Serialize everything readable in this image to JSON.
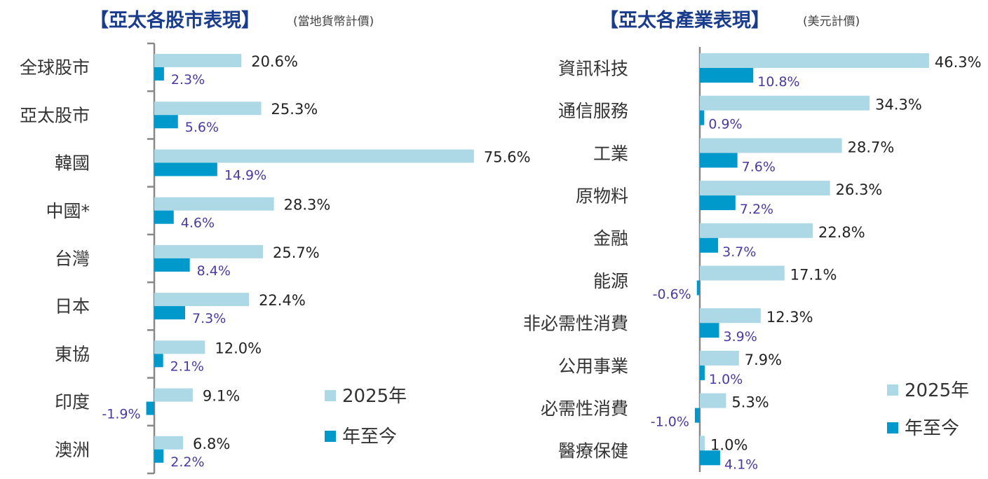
{
  "colors": {
    "series_2025": "#add8e6",
    "series_ytd": "#0099cc",
    "title": "#1a3c8c",
    "ytd_label": "#4a3aa0",
    "axis": "#888888"
  },
  "chart_data": [
    {
      "type": "bar",
      "orientation": "horizontal",
      "title": "【亞太各股市表現】",
      "subtitle": "(當地貨幣計價)",
      "categories": [
        "全球股市",
        "亞太股市",
        "韓國",
        "中國*",
        "台灣",
        "日本",
        "東協",
        "印度",
        "澳洲"
      ],
      "series": [
        {
          "name": "2025年",
          "values": [
            20.6,
            25.3,
            75.6,
            28.3,
            25.7,
            22.4,
            12.0,
            9.1,
            6.8
          ],
          "labels": [
            "20.6%",
            "25.3%",
            "75.6%",
            "28.3%",
            "25.7%",
            "22.4%",
            "12.0%",
            "9.1%",
            "6.8%"
          ]
        },
        {
          "name": "年至今",
          "values": [
            2.3,
            5.6,
            14.9,
            4.6,
            8.4,
            7.3,
            2.1,
            -1.9,
            2.2
          ],
          "labels": [
            "2.3%",
            "5.6%",
            "14.9%",
            "4.6%",
            "8.4%",
            "7.3%",
            "2.1%",
            "-1.9%",
            "2.2%"
          ]
        }
      ],
      "unit": "%",
      "legend": [
        "2025年",
        "年至今"
      ],
      "legend_position": "bottom-right"
    },
    {
      "type": "bar",
      "orientation": "horizontal",
      "title": "【亞太各產業表現】",
      "subtitle": "(美元計價)",
      "categories": [
        "資訊科技",
        "通信服務",
        "工業",
        "原物料",
        "金融",
        "能源",
        "非必需性消費",
        "公用事業",
        "必需性消費",
        "醫療保健"
      ],
      "series": [
        {
          "name": "2025年",
          "values": [
            46.3,
            34.3,
            28.7,
            26.3,
            22.8,
            17.1,
            12.3,
            7.9,
            5.3,
            1.0
          ],
          "labels": [
            "46.3%",
            "34.3%",
            "28.7%",
            "26.3%",
            "22.8%",
            "17.1%",
            "12.3%",
            "7.9%",
            "5.3%",
            "1.0%"
          ]
        },
        {
          "name": "年至今",
          "values": [
            10.8,
            0.9,
            7.6,
            7.2,
            3.7,
            -0.6,
            3.9,
            1.0,
            -1.0,
            4.1
          ],
          "labels": [
            "10.8%",
            "0.9%",
            "7.6%",
            "7.2%",
            "3.7%",
            "-0.6%",
            "3.9%",
            "1.0%",
            "-1.0%",
            "4.1%"
          ]
        }
      ],
      "unit": "%",
      "legend": [
        "2025年",
        "年至今"
      ],
      "legend_position": "bottom-right"
    }
  ]
}
